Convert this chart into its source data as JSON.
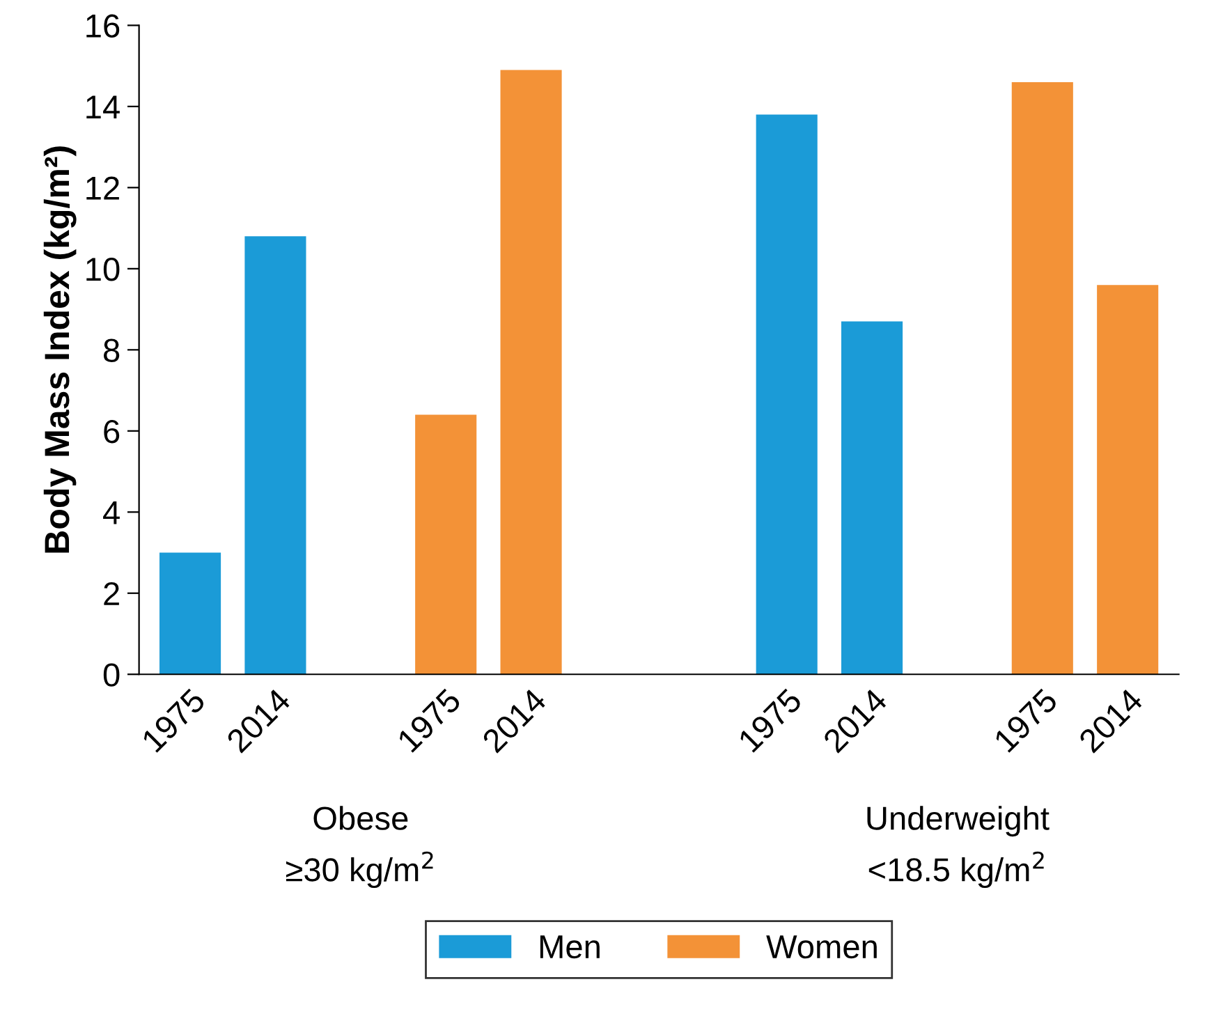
{
  "chart_data": {
    "type": "bar",
    "ylabel": "Body Mass Index (kg/m²)",
    "categories": [
      "1975",
      "2014",
      null,
      "1975",
      "2014",
      null,
      null,
      "1975",
      "2014",
      null,
      "1975",
      "2014"
    ],
    "series": [
      {
        "name": "Men",
        "color": "#1b9bd7",
        "values": [
          3.0,
          10.8,
          null,
          null,
          null,
          null,
          null,
          13.8,
          8.7,
          null,
          null,
          null
        ]
      },
      {
        "name": "Women",
        "color": "#f39237",
        "values": [
          null,
          null,
          null,
          6.4,
          14.9,
          null,
          null,
          null,
          null,
          null,
          14.6,
          9.6
        ]
      }
    ],
    "ylim": [
      0,
      16
    ],
    "yticks": [
      0,
      2,
      4,
      6,
      8,
      10,
      12,
      14,
      16
    ],
    "annotations": [
      "Obese\n≥30 kg/m$^{2}$",
      "Underweight\n<18.5 kg/m$^{2}$"
    ],
    "grid": false,
    "legend": "bottom"
  }
}
